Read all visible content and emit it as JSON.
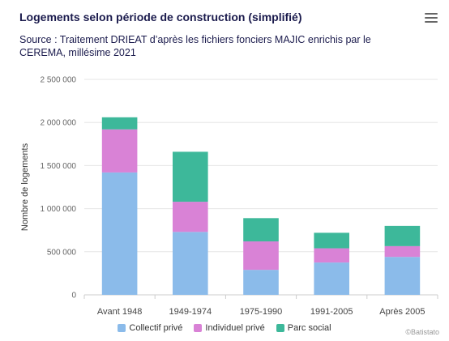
{
  "header": {
    "title": "Logements selon période de construction (simplifié)",
    "subtitle": "Source : Traitement DRIEAT d’après les fichiers fonciers MAJIC enrichis par le CEREMA, millésime 2021"
  },
  "credit": "©Batistato",
  "chart_data": {
    "type": "bar",
    "stacked": true,
    "title": "Logements selon période de construction (simplifié)",
    "ylabel": "Nombre de logements",
    "xlabel": "",
    "ylim": [
      0,
      2500000
    ],
    "yticks": [
      0,
      500000,
      1000000,
      1500000,
      2000000,
      2500000
    ],
    "ytick_labels": [
      "0",
      "500 000",
      "1 000 000",
      "1 500 000",
      "2 000 000",
      "2 500 000"
    ],
    "grid": true,
    "legend_position": "bottom",
    "categories": [
      "Avant 1948",
      "1949-1974",
      "1975-1990",
      "1991-2005",
      "Après 2005"
    ],
    "series": [
      {
        "name": "Collectif privé",
        "color": "#8bbbea",
        "values": [
          1420000,
          730000,
          290000,
          375000,
          440000
        ]
      },
      {
        "name": "Individuel privé",
        "color": "#d982d6",
        "values": [
          500000,
          350000,
          330000,
          165000,
          125000
        ]
      },
      {
        "name": "Parc social",
        "color": "#3db89a",
        "values": [
          140000,
          580000,
          270000,
          180000,
          235000
        ]
      }
    ]
  }
}
